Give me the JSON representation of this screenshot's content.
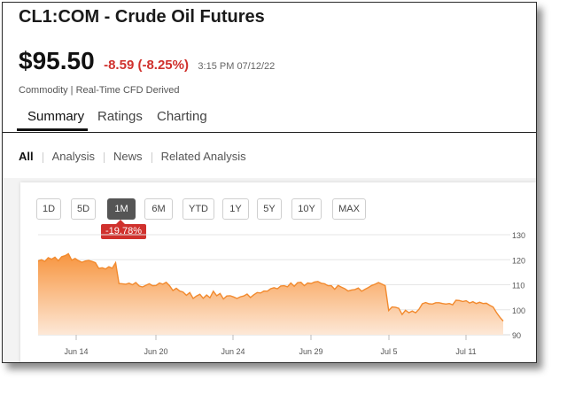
{
  "header": {
    "title": "CL1:COM  -  Crude Oil Futures",
    "price": "$95.50",
    "change": "-8.59 (-8.25%)",
    "timestamp": "3:15 PM 07/12/22",
    "meta": "Commodity | Real-Time CFD Derived"
  },
  "tabs": [
    "Summary",
    "Ratings",
    "Charting"
  ],
  "filters": [
    "All",
    "Analysis",
    "News",
    "Related Analysis"
  ],
  "ranges": [
    "1D",
    "5D",
    "1M",
    "6M",
    "YTD",
    "1Y",
    "5Y",
    "10Y",
    "MAX"
  ],
  "active_range": "1M",
  "period_change": "-19.78%",
  "colors": {
    "accent": "#d0312d",
    "line": "#f28a2e",
    "area_top": "#f7953f",
    "area_bottom": "#fde8d7"
  },
  "chart_data": {
    "type": "area",
    "x_tick_labels": [
      "Jun 14",
      "Jun 20",
      "Jun 24",
      "Jun 29",
      "Jul 5",
      "Jul 11"
    ],
    "y_tick_labels": [
      "130",
      "120",
      "110",
      "100",
      "90"
    ],
    "ylim": [
      90,
      130
    ],
    "y_grid": true,
    "values": [
      119.5,
      120,
      119.3,
      120.8,
      120.2,
      121,
      119.6,
      121.2,
      121.6,
      122.4,
      119.8,
      120.5,
      119.6,
      119,
      119.5,
      119.7,
      119.3,
      118.8,
      116.5,
      116.8,
      116.3,
      117.2,
      116.6,
      118.8,
      110.5,
      110.4,
      110.2,
      110.6,
      110,
      110.9,
      109.5,
      109.1,
      109.8,
      110.4,
      109.6,
      109.7,
      110.7,
      110.2,
      111,
      109.6,
      107.7,
      108.6,
      107.5,
      107.1,
      105.8,
      106.9,
      104.5,
      105.5,
      106.2,
      104.6,
      105.9,
      104.8,
      107.4,
      105.6,
      106.5,
      104.3,
      105.5,
      105.6,
      105.1,
      104.5,
      105.2,
      105.5,
      106.3,
      104.9,
      106,
      106.9,
      106.7,
      107.5,
      107.4,
      108.4,
      108.8,
      108.4,
      109.5,
      109.6,
      109.2,
      110.7,
      109.4,
      110.8,
      111,
      109.6,
      110.7,
      110.5,
      111.1,
      111.3,
      110.6,
      110.4,
      109.6,
      109.6,
      108.2,
      109.7,
      109,
      108.4,
      107.5,
      107.9,
      108.1,
      108.7,
      107.4,
      108.2,
      108.9,
      109.7,
      110.2,
      110.9,
      110.3,
      109.6,
      99.7,
      101.1,
      101,
      100.6,
      98.1,
      99.8,
      98.8,
      99.5,
      98.8,
      100.2,
      102.4,
      102.9,
      102.4,
      102.3,
      102.8,
      102.8,
      102.5,
      102.3,
      102.5,
      102,
      103.8,
      103.7,
      103.3,
      103.6,
      102.7,
      103.2,
      102.5,
      103,
      102.5,
      102.6,
      101.8,
      101.1,
      98.9,
      97,
      95.5
    ]
  }
}
